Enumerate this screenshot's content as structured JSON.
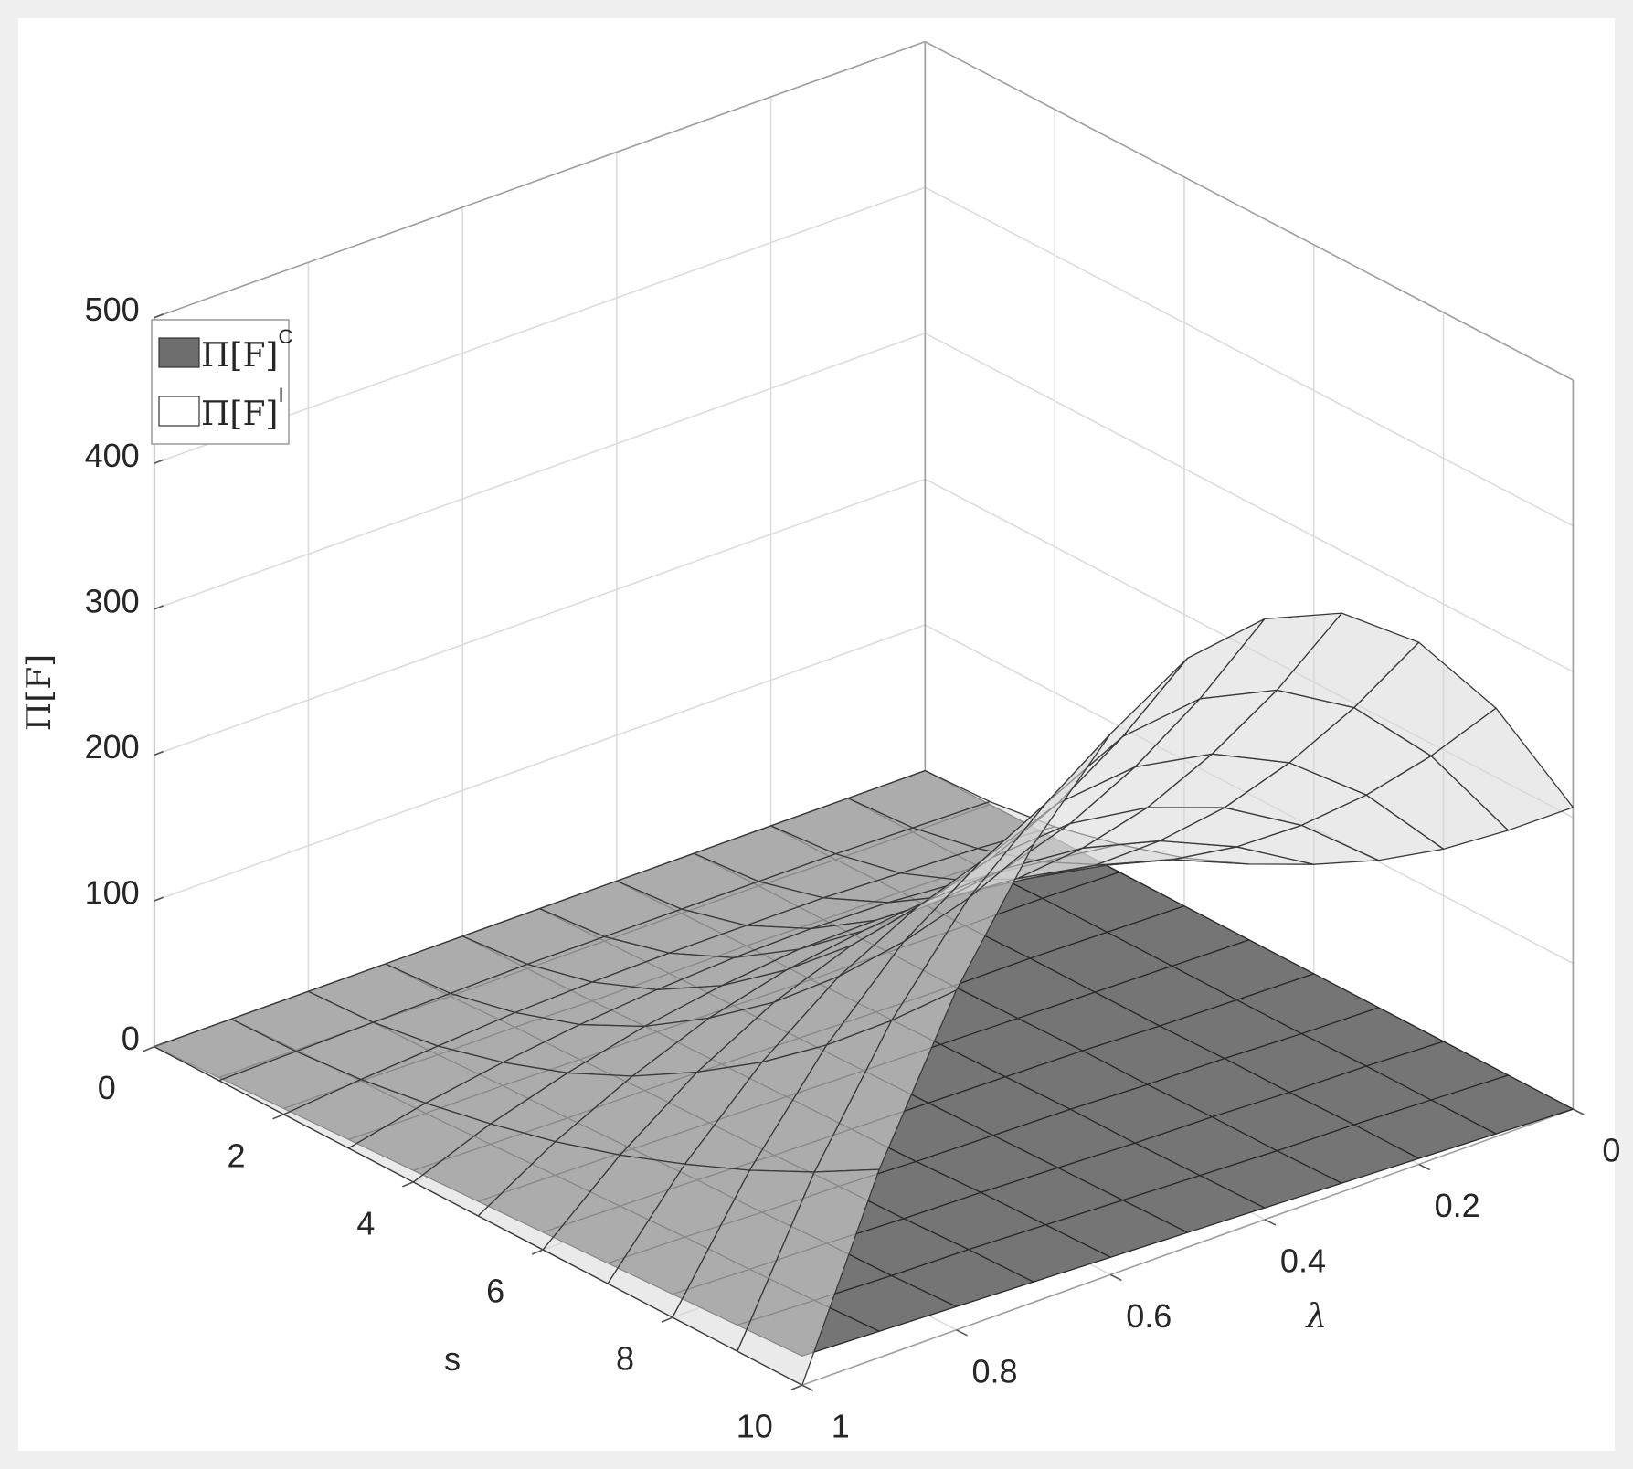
{
  "chart_data": {
    "type": "surface",
    "xlabel": "s",
    "ylabel": "λ",
    "zlabel": "Π[F]",
    "x": [
      0,
      1,
      2,
      3,
      4,
      5,
      6,
      7,
      8,
      9,
      10
    ],
    "y": [
      0,
      0.1,
      0.2,
      0.3,
      0.4,
      0.5,
      0.6,
      0.7,
      0.8,
      0.9,
      1
    ],
    "xlim": [
      0,
      10
    ],
    "ylim": [
      0,
      1
    ],
    "zlim": [
      0,
      500
    ],
    "xticks": [
      0,
      2,
      4,
      6,
      8,
      10
    ],
    "yticks": [
      0,
      0.2,
      0.4,
      0.6,
      0.8,
      1
    ],
    "zticks": [
      0,
      100,
      200,
      300,
      400,
      500
    ],
    "grid": true,
    "legend": "upper left",
    "series": [
      {
        "name": "Π[F]",
        "superscript": "C",
        "color": "#6e6e6e",
        "z": [
          [
            0,
            0,
            0,
            0,
            0,
            0,
            0,
            0,
            0,
            0,
            0
          ],
          [
            0,
            0,
            0,
            1,
            1,
            1,
            1,
            1,
            2,
            2,
            2
          ],
          [
            0,
            0,
            1,
            1,
            2,
            2,
            2,
            3,
            3,
            4,
            4
          ],
          [
            0,
            1,
            1,
            2,
            2,
            3,
            4,
            4,
            5,
            5,
            6
          ],
          [
            0,
            1,
            2,
            2,
            3,
            4,
            5,
            6,
            6,
            7,
            8
          ],
          [
            0,
            1,
            2,
            3,
            4,
            5,
            6,
            7,
            8,
            9,
            10
          ],
          [
            0,
            1,
            2,
            4,
            5,
            6,
            7,
            8,
            10,
            11,
            12
          ],
          [
            0,
            1,
            3,
            4,
            6,
            7,
            8,
            10,
            11,
            13,
            14
          ],
          [
            0,
            2,
            3,
            5,
            6,
            8,
            10,
            11,
            13,
            14,
            16
          ],
          [
            0,
            2,
            4,
            5,
            7,
            9,
            11,
            13,
            14,
            16,
            18
          ],
          [
            0,
            2,
            4,
            6,
            8,
            10,
            12,
            14,
            16,
            18,
            20
          ]
        ]
      },
      {
        "name": "Π[F]",
        "superscript": "I",
        "color": "#ffffff",
        "z": [
          [
            0,
            0,
            0,
            0,
            0,
            0,
            0,
            0,
            0,
            0,
            0
          ],
          [
            2,
            3,
            4,
            4,
            4,
            4,
            4,
            3,
            2,
            1,
            0
          ],
          [
            8,
            12,
            14,
            16,
            16,
            16,
            15,
            13,
            9,
            5,
            0
          ],
          [
            19,
            26,
            32,
            36,
            37,
            36,
            33,
            28,
            21,
            12,
            0
          ],
          [
            33,
            47,
            57,
            64,
            66,
            65,
            59,
            50,
            37,
            21,
            0
          ],
          [
            52,
            74,
            89,
            99,
            103,
            101,
            93,
            79,
            58,
            32,
            0
          ],
          [
            75,
            106,
            129,
            143,
            148,
            145,
            133,
            113,
            84,
            46,
            0
          ],
          [
            101,
            144,
            175,
            194,
            202,
            198,
            182,
            154,
            114,
            63,
            0
          ],
          [
            132,
            188,
            229,
            254,
            264,
            258,
            237,
            201,
            149,
            82,
            0
          ],
          [
            168,
            238,
            290,
            321,
            334,
            327,
            300,
            254,
            189,
            104,
            0
          ],
          [
            207,
            294,
            358,
            397,
            412,
            404,
            371,
            314,
            233,
            129,
            0
          ]
        ]
      }
    ]
  }
}
